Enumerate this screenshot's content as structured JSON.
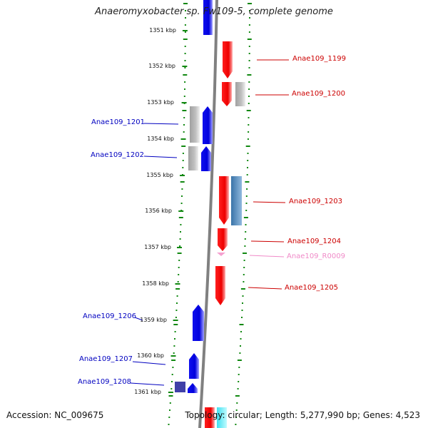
{
  "title": "Anaeromyxobacter sp. Fw109-5, complete genome",
  "footer": {
    "accession": "Accession: NC_009675",
    "topology": "Topology: circular; Length: 5,277,990 bp; Genes: 4,523"
  },
  "ticks": [
    "1351 kbp",
    "1352 kbp",
    "1353 kbp",
    "1354 kbp",
    "1355 kbp",
    "1356 kbp",
    "1357 kbp",
    "1358 kbp",
    "1359 kbp",
    "1360 kbp",
    "1361 kbp"
  ],
  "gene_labels": [
    {
      "text": "Anae109_1199",
      "strand": "plus"
    },
    {
      "text": "Anae109_1200",
      "strand": "plus"
    },
    {
      "text": "Anae109_1201",
      "strand": "minus"
    },
    {
      "text": "Anae109_1202",
      "strand": "minus"
    },
    {
      "text": "Anae109_1203",
      "strand": "plus"
    },
    {
      "text": "Anae109_1204",
      "strand": "plus"
    },
    {
      "text": "Anae109_R0009",
      "strand": "rna"
    },
    {
      "text": "Anae109_1205",
      "strand": "plus"
    },
    {
      "text": "Anae109_1206",
      "strand": "minus"
    },
    {
      "text": "Anae109_1207",
      "strand": "minus"
    },
    {
      "text": "Anae109_1208",
      "strand": "minus"
    }
  ],
  "colors": {
    "plus_strand": "#ee1111",
    "minus_strand": "#1111ee",
    "pseudo": "#b8b8b8",
    "steelblue": "#4682b4",
    "rna": "#f5a0d0",
    "backbone": "#808080",
    "dots": "#118811"
  }
}
